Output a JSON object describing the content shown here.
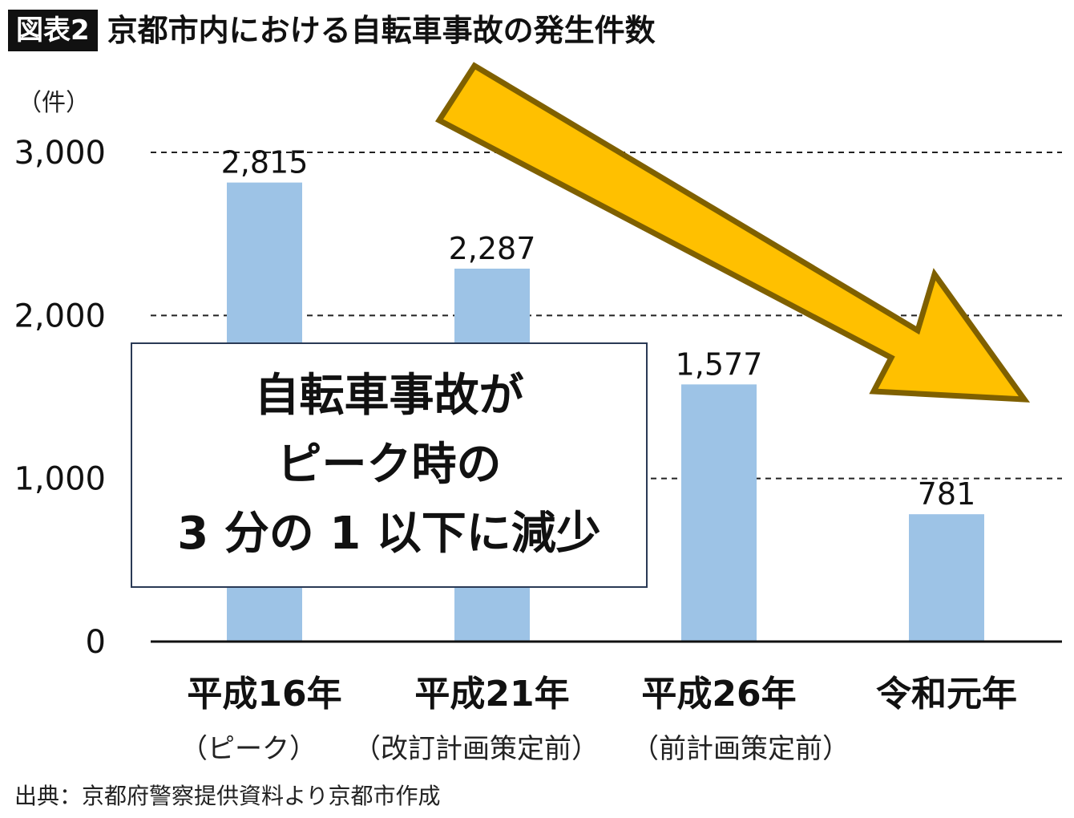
{
  "header": {
    "figure_label": "図表2",
    "title": "京都市内における自転車事故の発生件数"
  },
  "callout": {
    "lines": [
      "自転車事故が",
      "ピーク時の",
      "3 分の 1 以下に減少"
    ]
  },
  "source": "出典：京都府警察提供資料より京都市作成",
  "colors": {
    "bar": "#9dc3e6",
    "arrow_fill": "#ffc000",
    "arrow_stroke": "#7f6000",
    "callout_border": "#2a3a55"
  },
  "chart_data": {
    "type": "bar",
    "title": "京都市内における自転車事故の発生件数",
    "ylabel": "（件）",
    "xlabel": "",
    "ylim": [
      0,
      3000
    ],
    "yticks": [
      0,
      1000,
      2000,
      3000
    ],
    "ytick_labels": [
      "0",
      "1,000",
      "2,000",
      "3,000"
    ],
    "grid": "dashed horizontal",
    "categories": [
      "平成16年",
      "平成21年",
      "平成26年",
      "令和元年"
    ],
    "category_notes": [
      "（ピーク）",
      "（改訂計画策定前）",
      "（前計画策定前）",
      ""
    ],
    "values": [
      2815,
      2287,
      1577,
      781
    ],
    "data_labels": [
      "2,815",
      "2,287",
      "1,577",
      "781"
    ]
  }
}
